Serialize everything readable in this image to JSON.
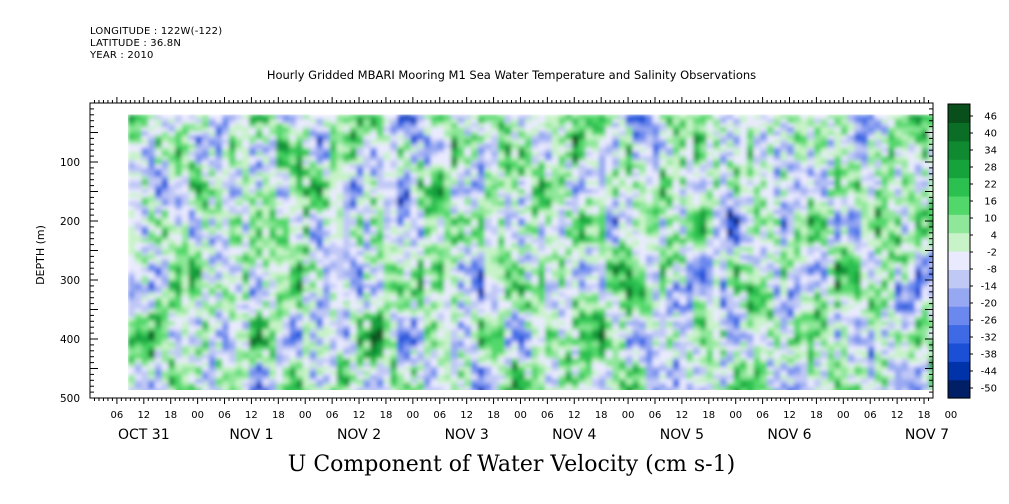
{
  "header": {
    "longitude": "LONGITUDE : 122W(-122)",
    "latitude": "LATITUDE : 36.8N",
    "year": "YEAR : 2010"
  },
  "chart_data": {
    "type": "heatmap",
    "title": "Hourly Gridded MBARI Mooring M1 Sea Water Temperature and Salinity Observations",
    "caption": "U Component of Water Velocity (cm s-1)",
    "ylabel": "DEPTH (m)",
    "ylim": [
      500,
      0
    ],
    "y_ticks": [
      100,
      200,
      300,
      400,
      500
    ],
    "x_hour_ticks": [
      "06",
      "12",
      "18",
      "00",
      "06",
      "12",
      "18",
      "00",
      "06",
      "12",
      "18",
      "00",
      "06",
      "12",
      "18",
      "00",
      "06",
      "12",
      "18",
      "00",
      "06",
      "12",
      "18",
      "00",
      "06",
      "12",
      "18",
      "00",
      "06",
      "12",
      "18",
      "00"
    ],
    "x_date_labels": [
      "OCT 31",
      "NOV  1",
      "NOV  2",
      "NOV  3",
      "NOV  4",
      "NOV  5",
      "NOV  6",
      "NOV  7"
    ],
    "x_range_hours": [
      0,
      188
    ],
    "data_depth_range": [
      20,
      490
    ],
    "colorbar": {
      "levels": [
        "46",
        "40",
        "34",
        "28",
        "22",
        "16",
        "10",
        "4",
        "-2",
        "-8",
        "-14",
        "-20",
        "-26",
        "-32",
        "-38",
        "-44",
        "-50"
      ],
      "vmin": -50,
      "vmax": 50,
      "colors": [
        "#001f66",
        "#0033aa",
        "#1a4fd6",
        "#3f6ae6",
        "#6a88ee",
        "#97a8f2",
        "#c0c8f6",
        "#eaeaff",
        "#c8f3c8",
        "#8fe79a",
        "#52d86a",
        "#2bc050",
        "#17a33c",
        "#0f8a30",
        "#0b6e26",
        "#084f1b"
      ]
    }
  }
}
